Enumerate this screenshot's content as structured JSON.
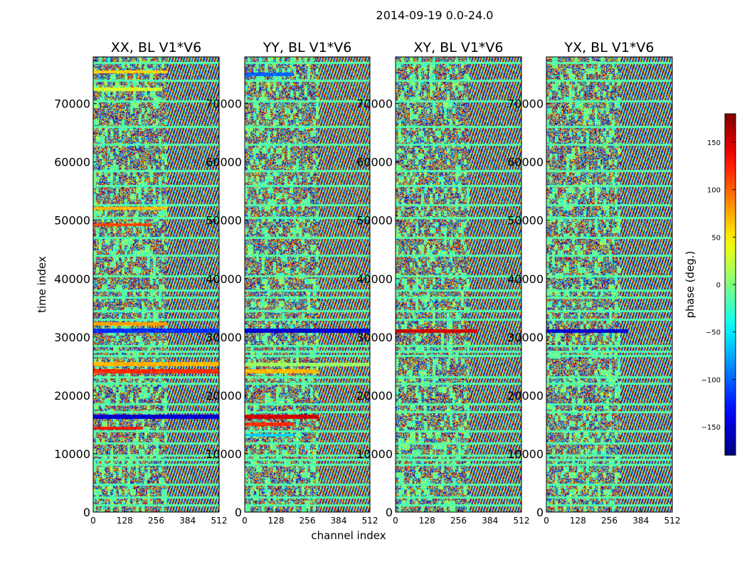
{
  "suptitle": "2014-09-19 0.0-24.0",
  "chart_data": [
    {
      "type": "heatmap",
      "title": "XX, BL V1*V6",
      "xlabel": "",
      "ylabel": "time index",
      "xlim": [
        0,
        512
      ],
      "ylim": [
        0,
        78000
      ],
      "xticks": [
        "0",
        "128",
        "256",
        "384",
        "512"
      ],
      "yticks": [
        "0",
        "10000",
        "20000",
        "30000",
        "40000",
        "50000",
        "60000",
        "70000"
      ],
      "value_range": [
        -180,
        180
      ],
      "bands": [
        {
          "y": [
            75200,
            75800
          ],
          "phase": 60,
          "x_end": 300
        },
        {
          "y": [
            72200,
            72800
          ],
          "phase": 30,
          "x_end": 280
        },
        {
          "y": [
            51800,
            52400
          ],
          "phase": 70,
          "x_end": 300
        },
        {
          "y": [
            49000,
            49500
          ],
          "phase": 110,
          "x_end": 240
        },
        {
          "y": [
            32000,
            32600
          ],
          "phase": 80,
          "x_end": 300
        },
        {
          "y": [
            30800,
            31500
          ],
          "phase": -120,
          "x_end": 512
        },
        {
          "y": [
            25000,
            25800
          ],
          "phase": 70,
          "x_end": 512
        },
        {
          "y": [
            23800,
            24500
          ],
          "phase": 120,
          "x_end": 512
        },
        {
          "y": [
            16000,
            16800
          ],
          "phase": -150,
          "x_end": 512
        },
        {
          "y": [
            14200,
            14700
          ],
          "phase": 130,
          "x_end": 200
        }
      ]
    },
    {
      "type": "heatmap",
      "title": "YY, BL V1*V6",
      "xlabel": "channel index",
      "ylabel": "",
      "xlim": [
        0,
        512
      ],
      "ylim": [
        0,
        78000
      ],
      "xticks": [
        "0",
        "128",
        "256",
        "384",
        "512"
      ],
      "yticks": [
        "0",
        "10000",
        "20000",
        "30000",
        "40000",
        "50000",
        "60000",
        "70000"
      ],
      "value_range": [
        -180,
        180
      ],
      "bands": [
        {
          "y": [
            74800,
            75400
          ],
          "phase": -100,
          "x_end": 200
        },
        {
          "y": [
            30800,
            31500
          ],
          "phase": -150,
          "x_end": 512
        },
        {
          "y": [
            25000,
            25700
          ],
          "phase": 10,
          "x_end": 512
        },
        {
          "y": [
            23800,
            24500
          ],
          "phase": 70,
          "x_end": 300
        },
        {
          "y": [
            16000,
            16800
          ],
          "phase": 150,
          "x_end": 300
        },
        {
          "y": [
            14800,
            15400
          ],
          "phase": 120,
          "x_end": 200
        },
        {
          "y": [
            13000,
            13500
          ],
          "phase": -60,
          "x_end": 200
        }
      ]
    },
    {
      "type": "heatmap",
      "title": "XY, BL V1*V6",
      "xlabel": "",
      "ylabel": "",
      "xlim": [
        0,
        512
      ],
      "ylim": [
        0,
        78000
      ],
      "xticks": [
        "0",
        "128",
        "256",
        "384",
        "512"
      ],
      "yticks": [
        "0",
        "10000",
        "20000",
        "30000",
        "40000",
        "50000",
        "60000",
        "70000"
      ],
      "value_range": [
        -180,
        180
      ],
      "bands": [
        {
          "y": [
            30800,
            31400
          ],
          "phase": 150,
          "x_end": 330
        }
      ]
    },
    {
      "type": "heatmap",
      "title": "YX, BL V1*V6",
      "xlabel": "",
      "ylabel": "",
      "xlim": [
        0,
        512
      ],
      "ylim": [
        0,
        78000
      ],
      "xticks": [
        "0",
        "128",
        "256",
        "384",
        "512"
      ],
      "yticks": [
        "0",
        "10000",
        "20000",
        "30000",
        "40000",
        "50000",
        "60000",
        "70000"
      ],
      "value_range": [
        -180,
        180
      ],
      "bands": [
        {
          "y": [
            30800,
            31400
          ],
          "phase": -150,
          "x_end": 330
        }
      ]
    }
  ],
  "colorbar": {
    "label": "phase (deg.)",
    "range": [
      -180,
      180
    ],
    "ticks": [
      "150",
      "100",
      "50",
      "0",
      "−50",
      "−100",
      "−150"
    ],
    "tick_values": [
      150,
      100,
      50,
      0,
      -50,
      -100,
      -150
    ],
    "colormap": "jet"
  }
}
